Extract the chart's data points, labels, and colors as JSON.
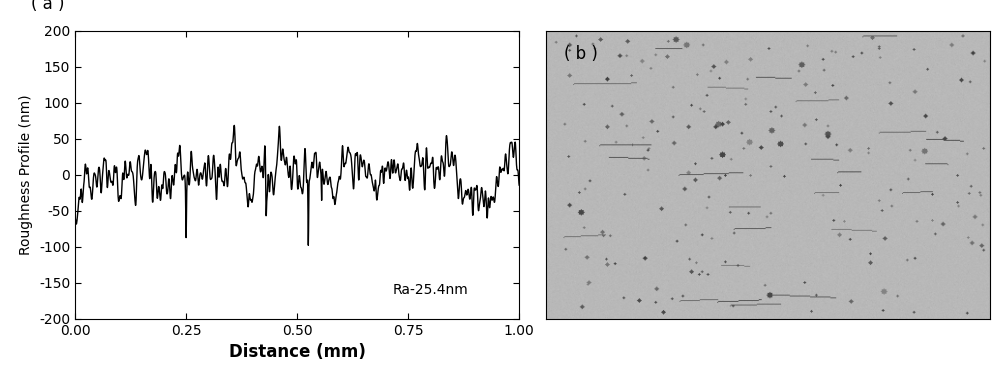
{
  "title_a": "( a )",
  "title_b": "( b )",
  "xlabel": "Distance (mm)",
  "ylabel": "Roughness Profile (nm)",
  "xlim": [
    0.0,
    1.0
  ],
  "ylim": [
    -200,
    200
  ],
  "yticks": [
    -200,
    -150,
    -100,
    -50,
    0,
    50,
    100,
    150,
    200
  ],
  "xticks": [
    0.0,
    0.25,
    0.5,
    0.75,
    1.0
  ],
  "annotation": "Ra-25.4nm",
  "line_color": "#000000",
  "line_width": 1.0,
  "bg_gray": 0.72,
  "seed": 42,
  "n_points": 2000
}
